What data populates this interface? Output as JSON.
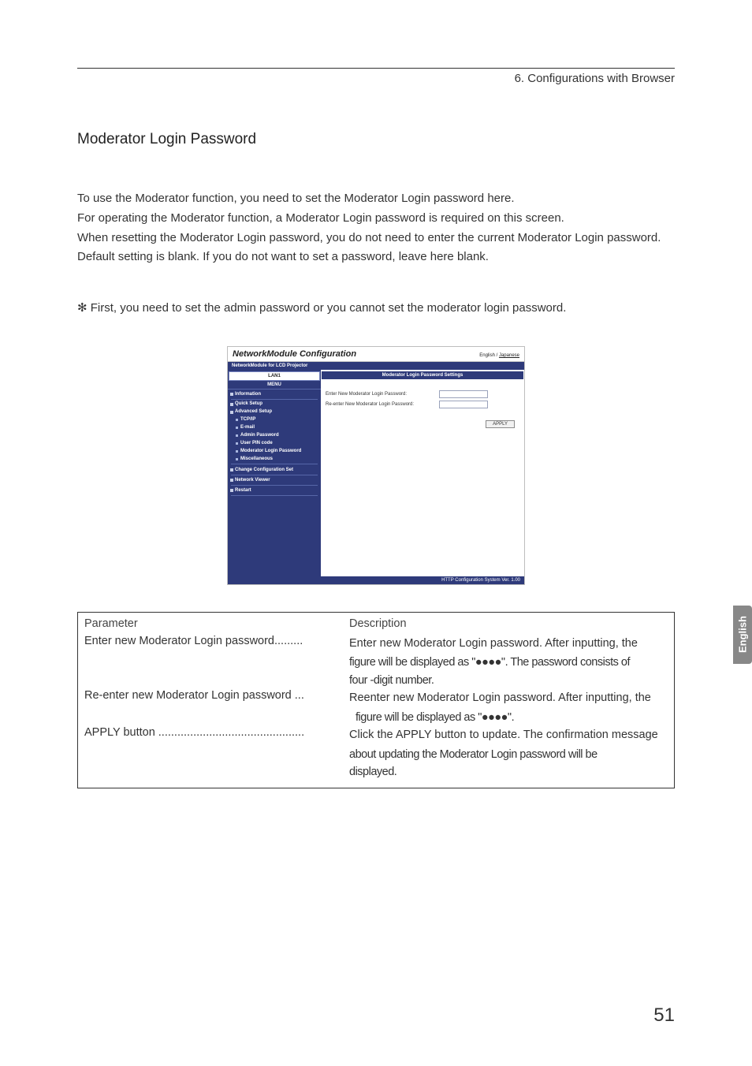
{
  "header": {
    "breadcrumb": "6. Configurations with Browser"
  },
  "section_title": "Moderator Login Password",
  "body_paragraph": "To use the Moderator function, you need to set the Moderator Login password here.\nFor operating the Moderator function, a Moderator Login password is required on this screen.\nWhen resetting the Moderator Login password, you do not need to enter the current Moderator Login password.\nDefault setting is blank.  If you do not want to set a password, leave here blank.",
  "note": "✻ First, you need to set the admin password or you cannot set the moderator login password.",
  "screenshot": {
    "title": "NetworkModule Configuration",
    "lang_active": "English",
    "lang_separator": " / ",
    "lang_link": "Japanese",
    "subbar": "NetworkModule for LCD Projector",
    "sidebar": {
      "lan_tab": "LAN1",
      "menu_header": "MENU",
      "items": [
        {
          "label": "Information",
          "class": "top"
        },
        {
          "label": "Quick Setup",
          "class": ""
        },
        {
          "label": "Advanced Setup",
          "class": ""
        },
        {
          "label": "TCP/IP",
          "class": "sub"
        },
        {
          "label": "E-mail",
          "class": "sub"
        },
        {
          "label": "Admin Password",
          "class": "sub"
        },
        {
          "label": "User PIN code",
          "class": "sub"
        },
        {
          "label": "Moderator Login Password",
          "class": "sub"
        },
        {
          "label": "Miscellaneous",
          "class": "sub grp"
        },
        {
          "label": "Change Configuration Set",
          "class": "top"
        },
        {
          "label": "Network Viewer",
          "class": "top"
        },
        {
          "label": "Restart",
          "class": "top"
        }
      ]
    },
    "content": {
      "pane_header": "Moderator Login Password Settings",
      "row1_label": "Enter New Moderator Login Password:",
      "row2_label": "Re-enter New Moderator Login Password:",
      "apply_button": "APPLY"
    },
    "footer": "HTTP Configuration System Ver. 1.00"
  },
  "param_table": {
    "col1": "Parameter",
    "col2": "Description",
    "rows": [
      {
        "label": "Enter new Moderator Login password.........",
        "desc": "Enter new Moderator Login password.  After inputting, the",
        "cont": [
          "figure will be displayed as \"●●●●\".  The password consists of",
          "four -digit number."
        ]
      },
      {
        "label": "Re-enter new Moderator Login password ...",
        "desc": " Reenter new Moderator Login password.  After inputting, the",
        "cont2": [
          "figure will be displayed as \"●●●●\"."
        ]
      },
      {
        "label": "APPLY button ..............................................",
        "desc": "Click the APPLY button to update.  The confirmation message",
        "cont": [
          "about updating the Moderator Login password will be",
          "displayed."
        ]
      }
    ]
  },
  "side_tab": "English",
  "page_number": "51"
}
